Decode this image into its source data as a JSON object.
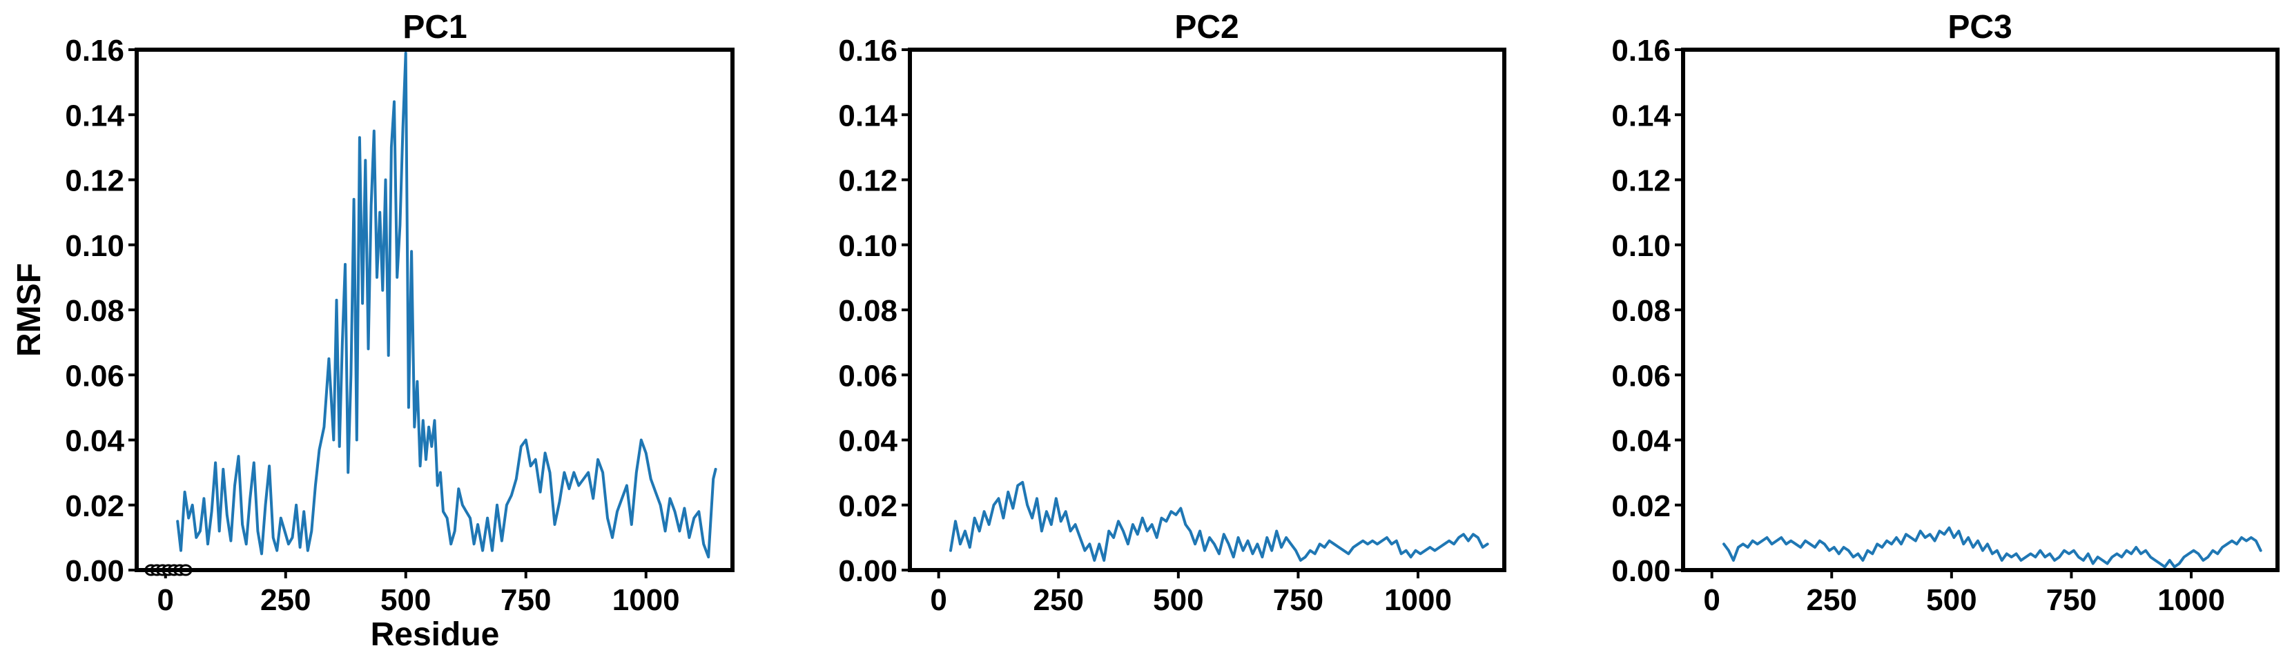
{
  "chart_data": [
    {
      "type": "line",
      "title": "PC1",
      "xlabel": "Residue",
      "ylabel": "RMSF",
      "xlim": [
        -60,
        1180
      ],
      "ylim": [
        0,
        0.16
      ],
      "xticks": [
        0,
        250,
        500,
        750,
        1000
      ],
      "yticks": [
        0.0,
        0.02,
        0.04,
        0.06,
        0.08,
        0.1,
        0.12,
        0.14,
        0.16
      ],
      "grid": false,
      "color": "#1f77b4",
      "extra_markers": {
        "x": [
          -30,
          -18,
          -6,
          6,
          18,
          30,
          42
        ],
        "y": [
          0,
          0,
          0,
          0,
          0,
          0,
          0
        ]
      },
      "series": [
        {
          "x": [
            25,
            32,
            40,
            48,
            56,
            64,
            72,
            80,
            88,
            96,
            104,
            112,
            120,
            128,
            136,
            144,
            152,
            160,
            168,
            176,
            184,
            192,
            200,
            208,
            216,
            224,
            232,
            240,
            248,
            256,
            264,
            272,
            280,
            288,
            296,
            304,
            312,
            320,
            330,
            340,
            350,
            356,
            362,
            368,
            374,
            380,
            386,
            392,
            398,
            404,
            410,
            416,
            422,
            428,
            434,
            440,
            446,
            452,
            458,
            464,
            470,
            476,
            482,
            488,
            494,
            500,
            506,
            512,
            518,
            524,
            530,
            536,
            542,
            548,
            554,
            560,
            566,
            572,
            578,
            586,
            594,
            602,
            610,
            618,
            626,
            634,
            642,
            650,
            660,
            670,
            680,
            690,
            700,
            710,
            720,
            730,
            740,
            750,
            760,
            770,
            780,
            790,
            800,
            810,
            820,
            830,
            840,
            850,
            860,
            870,
            880,
            890,
            900,
            910,
            920,
            930,
            940,
            950,
            960,
            970,
            980,
            990,
            1000,
            1010,
            1020,
            1030,
            1040,
            1050,
            1060,
            1070,
            1080,
            1090,
            1100,
            1110,
            1120,
            1130,
            1140,
            1145
          ],
          "y": [
            0.015,
            0.006,
            0.024,
            0.016,
            0.02,
            0.01,
            0.012,
            0.022,
            0.008,
            0.018,
            0.033,
            0.012,
            0.031,
            0.017,
            0.009,
            0.026,
            0.035,
            0.014,
            0.008,
            0.022,
            0.033,
            0.012,
            0.005,
            0.02,
            0.032,
            0.01,
            0.006,
            0.016,
            0.012,
            0.008,
            0.01,
            0.02,
            0.007,
            0.018,
            0.006,
            0.012,
            0.026,
            0.037,
            0.044,
            0.065,
            0.04,
            0.083,
            0.038,
            0.07,
            0.094,
            0.03,
            0.06,
            0.114,
            0.04,
            0.133,
            0.082,
            0.126,
            0.068,
            0.112,
            0.135,
            0.09,
            0.11,
            0.086,
            0.12,
            0.066,
            0.13,
            0.144,
            0.09,
            0.106,
            0.136,
            0.159,
            0.05,
            0.098,
            0.044,
            0.058,
            0.032,
            0.046,
            0.034,
            0.044,
            0.038,
            0.046,
            0.026,
            0.03,
            0.018,
            0.016,
            0.008,
            0.012,
            0.025,
            0.02,
            0.018,
            0.016,
            0.008,
            0.014,
            0.006,
            0.016,
            0.006,
            0.02,
            0.009,
            0.02,
            0.023,
            0.028,
            0.038,
            0.04,
            0.032,
            0.034,
            0.024,
            0.036,
            0.03,
            0.014,
            0.021,
            0.03,
            0.025,
            0.03,
            0.026,
            0.028,
            0.03,
            0.022,
            0.034,
            0.03,
            0.016,
            0.01,
            0.018,
            0.022,
            0.026,
            0.014,
            0.03,
            0.04,
            0.036,
            0.028,
            0.024,
            0.02,
            0.012,
            0.022,
            0.018,
            0.012,
            0.019,
            0.01,
            0.016,
            0.018,
            0.008,
            0.004,
            0.028,
            0.031
          ]
        }
      ]
    },
    {
      "type": "line",
      "title": "PC2",
      "xlabel": "",
      "ylabel": "",
      "xlim": [
        -60,
        1180
      ],
      "ylim": [
        0,
        0.16
      ],
      "xticks": [
        0,
        250,
        500,
        750,
        1000
      ],
      "yticks": [
        0.0,
        0.02,
        0.04,
        0.06,
        0.08,
        0.1,
        0.12,
        0.14,
        0.16
      ],
      "grid": false,
      "color": "#1f77b4",
      "series": [
        {
          "x": [
            25,
            35,
            45,
            55,
            65,
            75,
            85,
            95,
            105,
            115,
            125,
            135,
            145,
            155,
            165,
            175,
            185,
            195,
            205,
            215,
            225,
            235,
            245,
            255,
            265,
            275,
            285,
            295,
            305,
            315,
            325,
            335,
            345,
            355,
            365,
            375,
            385,
            395,
            405,
            415,
            425,
            435,
            445,
            455,
            465,
            475,
            485,
            495,
            505,
            515,
            525,
            535,
            545,
            555,
            565,
            575,
            585,
            595,
            605,
            615,
            625,
            635,
            645,
            655,
            665,
            675,
            685,
            695,
            705,
            715,
            725,
            735,
            745,
            755,
            765,
            775,
            785,
            795,
            805,
            815,
            825,
            835,
            845,
            855,
            865,
            875,
            885,
            895,
            905,
            915,
            925,
            935,
            945,
            955,
            965,
            975,
            985,
            995,
            1005,
            1015,
            1025,
            1035,
            1045,
            1055,
            1065,
            1075,
            1085,
            1095,
            1105,
            1115,
            1125,
            1135,
            1145
          ],
          "y": [
            0.006,
            0.015,
            0.008,
            0.012,
            0.007,
            0.016,
            0.012,
            0.018,
            0.014,
            0.02,
            0.022,
            0.016,
            0.024,
            0.019,
            0.026,
            0.027,
            0.02,
            0.016,
            0.022,
            0.012,
            0.018,
            0.014,
            0.022,
            0.015,
            0.018,
            0.012,
            0.014,
            0.01,
            0.006,
            0.008,
            0.003,
            0.008,
            0.003,
            0.012,
            0.01,
            0.015,
            0.012,
            0.008,
            0.014,
            0.011,
            0.016,
            0.012,
            0.014,
            0.01,
            0.016,
            0.015,
            0.018,
            0.017,
            0.019,
            0.014,
            0.012,
            0.008,
            0.012,
            0.006,
            0.01,
            0.008,
            0.005,
            0.011,
            0.008,
            0.004,
            0.01,
            0.006,
            0.009,
            0.005,
            0.008,
            0.004,
            0.01,
            0.006,
            0.012,
            0.007,
            0.01,
            0.008,
            0.006,
            0.003,
            0.004,
            0.006,
            0.005,
            0.008,
            0.007,
            0.009,
            0.008,
            0.007,
            0.006,
            0.005,
            0.007,
            0.008,
            0.009,
            0.008,
            0.009,
            0.008,
            0.009,
            0.01,
            0.008,
            0.009,
            0.005,
            0.006,
            0.004,
            0.006,
            0.005,
            0.006,
            0.007,
            0.006,
            0.007,
            0.008,
            0.009,
            0.008,
            0.01,
            0.011,
            0.009,
            0.011,
            0.01,
            0.007,
            0.008
          ]
        }
      ]
    },
    {
      "type": "line",
      "title": "PC3",
      "xlabel": "",
      "ylabel": "",
      "xlim": [
        -60,
        1180
      ],
      "ylim": [
        0,
        0.16
      ],
      "xticks": [
        0,
        250,
        500,
        750,
        1000
      ],
      "yticks": [
        0.0,
        0.02,
        0.04,
        0.06,
        0.08,
        0.1,
        0.12,
        0.14,
        0.16
      ],
      "grid": false,
      "color": "#1f77b4",
      "series": [
        {
          "x": [
            25,
            35,
            45,
            55,
            65,
            75,
            85,
            95,
            105,
            115,
            125,
            135,
            145,
            155,
            165,
            175,
            185,
            195,
            205,
            215,
            225,
            235,
            245,
            255,
            265,
            275,
            285,
            295,
            305,
            315,
            325,
            335,
            345,
            355,
            365,
            375,
            385,
            395,
            405,
            415,
            425,
            435,
            445,
            455,
            465,
            475,
            485,
            495,
            505,
            515,
            525,
            535,
            545,
            555,
            565,
            575,
            585,
            595,
            605,
            615,
            625,
            635,
            645,
            655,
            665,
            675,
            685,
            695,
            705,
            715,
            725,
            735,
            745,
            755,
            765,
            775,
            785,
            795,
            805,
            815,
            825,
            835,
            845,
            855,
            865,
            875,
            885,
            895,
            905,
            915,
            925,
            935,
            945,
            955,
            965,
            975,
            985,
            995,
            1005,
            1015,
            1025,
            1035,
            1045,
            1055,
            1065,
            1075,
            1085,
            1095,
            1105,
            1115,
            1125,
            1135,
            1145
          ],
          "y": [
            0.008,
            0.006,
            0.003,
            0.007,
            0.008,
            0.007,
            0.009,
            0.008,
            0.009,
            0.01,
            0.008,
            0.009,
            0.01,
            0.008,
            0.009,
            0.008,
            0.007,
            0.009,
            0.008,
            0.007,
            0.009,
            0.008,
            0.006,
            0.007,
            0.005,
            0.007,
            0.006,
            0.004,
            0.005,
            0.003,
            0.006,
            0.005,
            0.008,
            0.007,
            0.009,
            0.008,
            0.01,
            0.008,
            0.011,
            0.01,
            0.009,
            0.012,
            0.01,
            0.011,
            0.009,
            0.012,
            0.011,
            0.013,
            0.01,
            0.012,
            0.008,
            0.01,
            0.007,
            0.009,
            0.006,
            0.008,
            0.005,
            0.006,
            0.003,
            0.005,
            0.004,
            0.005,
            0.003,
            0.004,
            0.005,
            0.004,
            0.006,
            0.004,
            0.005,
            0.003,
            0.004,
            0.006,
            0.005,
            0.006,
            0.004,
            0.003,
            0.005,
            0.002,
            0.004,
            0.003,
            0.002,
            0.004,
            0.005,
            0.004,
            0.006,
            0.005,
            0.007,
            0.005,
            0.006,
            0.004,
            0.003,
            0.002,
            0.001,
            0.003,
            0.001,
            0.002,
            0.004,
            0.005,
            0.006,
            0.005,
            0.003,
            0.004,
            0.006,
            0.005,
            0.007,
            0.008,
            0.009,
            0.008,
            0.01,
            0.009,
            0.01,
            0.009,
            0.006
          ]
        }
      ]
    }
  ]
}
